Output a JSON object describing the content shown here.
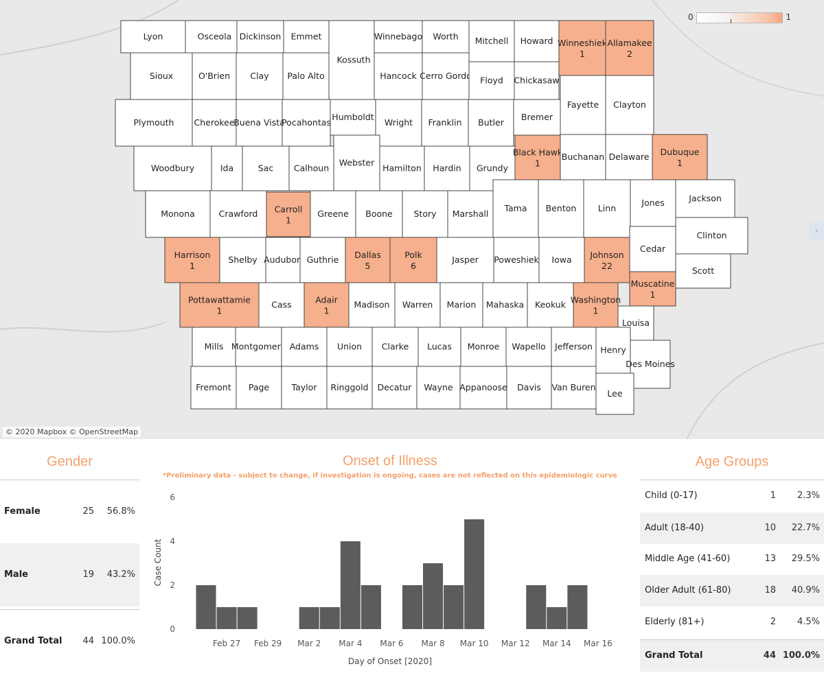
{
  "map": {
    "attribution": "© 2020 Mapbox © OpenStreetMap",
    "legend": {
      "min": "0",
      "max": "1"
    },
    "colors": {
      "zero": "#ffffff",
      "cases": "#f7b08d",
      "border": "#444444"
    },
    "counties": [
      {
        "name": "Lyon",
        "count": 0
      },
      {
        "name": "Osceola",
        "count": 0
      },
      {
        "name": "Dickinson",
        "count": 0
      },
      {
        "name": "Emmet",
        "count": 0
      },
      {
        "name": "Kossuth",
        "count": 0
      },
      {
        "name": "Winnebago",
        "count": 0
      },
      {
        "name": "Worth",
        "count": 0
      },
      {
        "name": "Mitchell",
        "count": 0
      },
      {
        "name": "Howard",
        "count": 0
      },
      {
        "name": "Winneshiek",
        "count": 1
      },
      {
        "name": "Allamakee",
        "count": 2
      },
      {
        "name": "Sioux",
        "count": 0
      },
      {
        "name": "O'Brien",
        "count": 0
      },
      {
        "name": "Clay",
        "count": 0
      },
      {
        "name": "Palo Alto",
        "count": 0
      },
      {
        "name": "Hancock",
        "count": 0
      },
      {
        "name": "Cerro Gordo",
        "count": 0
      },
      {
        "name": "Floyd",
        "count": 0
      },
      {
        "name": "Chickasaw",
        "count": 0
      },
      {
        "name": "Plymouth",
        "count": 0
      },
      {
        "name": "Cherokee",
        "count": 0
      },
      {
        "name": "Buena Vista",
        "count": 0
      },
      {
        "name": "Pocahontas",
        "count": 0
      },
      {
        "name": "Humboldt",
        "count": 0
      },
      {
        "name": "Wright",
        "count": 0
      },
      {
        "name": "Franklin",
        "count": 0
      },
      {
        "name": "Butler",
        "count": 0
      },
      {
        "name": "Bremer",
        "count": 0
      },
      {
        "name": "Fayette",
        "count": 0
      },
      {
        "name": "Clayton",
        "count": 0
      },
      {
        "name": "Woodbury",
        "count": 0
      },
      {
        "name": "Ida",
        "count": 0
      },
      {
        "name": "Sac",
        "count": 0
      },
      {
        "name": "Calhoun",
        "count": 0
      },
      {
        "name": "Webster",
        "count": 0
      },
      {
        "name": "Hamilton",
        "count": 0
      },
      {
        "name": "Hardin",
        "count": 0
      },
      {
        "name": "Grundy",
        "count": 0
      },
      {
        "name": "Black Hawk",
        "count": 1
      },
      {
        "name": "Buchanan",
        "count": 0
      },
      {
        "name": "Delaware",
        "count": 0
      },
      {
        "name": "Dubuque",
        "count": 1
      },
      {
        "name": "Monona",
        "count": 0
      },
      {
        "name": "Crawford",
        "count": 0
      },
      {
        "name": "Carroll",
        "count": 1
      },
      {
        "name": "Greene",
        "count": 0
      },
      {
        "name": "Boone",
        "count": 0
      },
      {
        "name": "Story",
        "count": 0
      },
      {
        "name": "Marshall",
        "count": 0
      },
      {
        "name": "Tama",
        "count": 0
      },
      {
        "name": "Benton",
        "count": 0
      },
      {
        "name": "Linn",
        "count": 0
      },
      {
        "name": "Jones",
        "count": 0
      },
      {
        "name": "Jackson",
        "count": 0
      },
      {
        "name": "Clinton",
        "count": 0
      },
      {
        "name": "Harrison",
        "count": 1
      },
      {
        "name": "Shelby",
        "count": 0
      },
      {
        "name": "Audubon",
        "count": 0
      },
      {
        "name": "Guthrie",
        "count": 0
      },
      {
        "name": "Dallas",
        "count": 5
      },
      {
        "name": "Polk",
        "count": 6
      },
      {
        "name": "Jasper",
        "count": 0
      },
      {
        "name": "Poweshiek",
        "count": 0
      },
      {
        "name": "Iowa",
        "count": 0
      },
      {
        "name": "Johnson",
        "count": 22
      },
      {
        "name": "Cedar",
        "count": 0
      },
      {
        "name": "Scott",
        "count": 0
      },
      {
        "name": "Muscatine",
        "count": 1
      },
      {
        "name": "Pottawattamie",
        "count": 1
      },
      {
        "name": "Cass",
        "count": 0
      },
      {
        "name": "Adair",
        "count": 1
      },
      {
        "name": "Madison",
        "count": 0
      },
      {
        "name": "Warren",
        "count": 0
      },
      {
        "name": "Marion",
        "count": 0
      },
      {
        "name": "Mahaska",
        "count": 0
      },
      {
        "name": "Keokuk",
        "count": 0
      },
      {
        "name": "Washington",
        "count": 1
      },
      {
        "name": "Louisa",
        "count": 0
      },
      {
        "name": "Mills",
        "count": 0
      },
      {
        "name": "Montgomery",
        "count": 0
      },
      {
        "name": "Adams",
        "count": 0
      },
      {
        "name": "Union",
        "count": 0
      },
      {
        "name": "Clarke",
        "count": 0
      },
      {
        "name": "Lucas",
        "count": 0
      },
      {
        "name": "Monroe",
        "count": 0
      },
      {
        "name": "Wapello",
        "count": 0
      },
      {
        "name": "Jefferson",
        "count": 0
      },
      {
        "name": "Henry",
        "count": 0
      },
      {
        "name": "Des Moines",
        "count": 0
      },
      {
        "name": "Fremont",
        "count": 0
      },
      {
        "name": "Page",
        "count": 0
      },
      {
        "name": "Taylor",
        "count": 0
      },
      {
        "name": "Ringgold",
        "count": 0
      },
      {
        "name": "Decatur",
        "count": 0
      },
      {
        "name": "Wayne",
        "count": 0
      },
      {
        "name": "Appanoose",
        "count": 0
      },
      {
        "name": "Davis",
        "count": 0
      },
      {
        "name": "Van Buren",
        "count": 0
      },
      {
        "name": "Lee",
        "count": 0
      }
    ]
  },
  "gender": {
    "title": "Gender",
    "rows": [
      {
        "label": "Female",
        "count": "25",
        "pct": "56.8%"
      },
      {
        "label": "Male",
        "count": "19",
        "pct": "43.2%"
      },
      {
        "label": "Grand Total",
        "count": "44",
        "pct": "100.0%"
      }
    ]
  },
  "onset": {
    "title": "Onset of Illness",
    "note": "*Preliminary data - subject to change, if investigation is ongoing, cases are not reflected on this epidemiologic curve"
  },
  "chart_data": {
    "type": "bar",
    "title": "Onset of Illness",
    "xlabel": "Day of Onset [2020]",
    "ylabel": "Case Count",
    "ylim": [
      0,
      6
    ],
    "yticks": [
      0,
      2,
      4,
      6
    ],
    "x_tick_labels": [
      "Feb 27",
      "Feb 29",
      "Mar 2",
      "Mar 4",
      "Mar 6",
      "Mar 8",
      "Mar 10",
      "Mar 12",
      "Mar 14",
      "Mar 16"
    ],
    "categories": [
      "Feb 26",
      "Feb 27",
      "Feb 28",
      "Feb 29",
      "Mar 1",
      "Mar 2",
      "Mar 3",
      "Mar 4",
      "Mar 5",
      "Mar 6",
      "Mar 7",
      "Mar 8",
      "Mar 9",
      "Mar 10",
      "Mar 11",
      "Mar 12",
      "Mar 13",
      "Mar 14",
      "Mar 15",
      "Mar 16",
      "Mar 17"
    ],
    "values": [
      2,
      1,
      1,
      0,
      0,
      1,
      1,
      4,
      2,
      0,
      2,
      3,
      2,
      5,
      0,
      0,
      2,
      1,
      2,
      0,
      0
    ],
    "bar_color": "#5c5c5c",
    "grid": false
  },
  "age": {
    "title": "Age Groups",
    "rows": [
      {
        "label": "Child (0-17)",
        "count": "1",
        "pct": "2.3%"
      },
      {
        "label": "Adult (18-40)",
        "count": "10",
        "pct": "22.7%"
      },
      {
        "label": "Middle Age (41-60)",
        "count": "13",
        "pct": "29.5%"
      },
      {
        "label": "Older Adult (61-80)",
        "count": "18",
        "pct": "40.9%"
      },
      {
        "label": "Elderly (81+)",
        "count": "2",
        "pct": "4.5%"
      },
      {
        "label": "Grand Total",
        "count": "44",
        "pct": "100.0%"
      }
    ]
  }
}
